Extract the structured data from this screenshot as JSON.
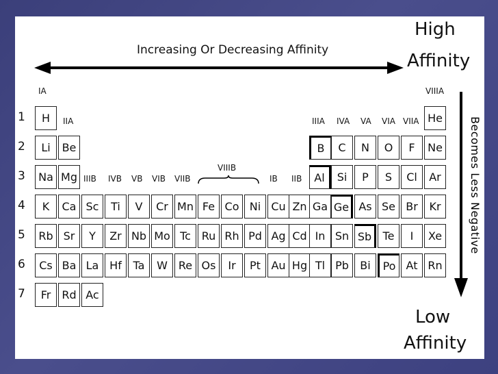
{
  "slide": {
    "arrow_label": "Increasing Or Decreasing Affinity",
    "high_label_1": "High",
    "high_label_2": "Affinity",
    "low_label_1": "Low",
    "low_label_2": "Affinity",
    "vertical_label": "Becomes Less Negative"
  },
  "groups": {
    "g1": "IA",
    "g2": "IIA",
    "g3": "IIIB",
    "g4": "IVB",
    "g5": "VB",
    "g6": "VIB",
    "g7": "VIIB",
    "g8": "VIIIB",
    "g11": "IB",
    "g12": "IIB",
    "g13": "IIIA",
    "g14": "IVA",
    "g15": "VA",
    "g16": "VIA",
    "g17": "VIIA",
    "g18": "VIIIA"
  },
  "periods": [
    "1",
    "2",
    "3",
    "4",
    "5",
    "6",
    "7"
  ],
  "elements": {
    "H": "H",
    "He": "He",
    "Li": "Li",
    "Be": "Be",
    "B": "B",
    "C": "C",
    "N": "N",
    "O": "O",
    "F": "F",
    "Ne": "Ne",
    "Na": "Na",
    "Mg": "Mg",
    "Al": "Al",
    "Si": "Si",
    "P": "P",
    "S": "S",
    "Cl": "Cl",
    "Ar": "Ar",
    "K": "K",
    "Ca": "Ca",
    "Sc": "Sc",
    "Ti": "Ti",
    "V": "V",
    "Cr": "Cr",
    "Mn": "Mn",
    "Fe": "Fe",
    "Co": "Co",
    "Ni": "Ni",
    "Cu": "Cu",
    "Zn": "Zn",
    "Ga": "Ga",
    "Ge": "Ge",
    "As": "As",
    "Se": "Se",
    "Br": "Br",
    "Kr": "Kr",
    "Rb": "Rb",
    "Sr": "Sr",
    "Y": "Y",
    "Zr": "Zr",
    "Nb": "Nb",
    "Mo": "Mo",
    "Tc": "Tc",
    "Ru": "Ru",
    "Rh": "Rh",
    "Pd": "Pd",
    "Ag": "Ag",
    "Cd": "Cd",
    "In": "In",
    "Sn": "Sn",
    "Sb": "Sb",
    "Te": "Te",
    "I": "I",
    "Xe": "Xe",
    "Cs": "Cs",
    "Ba": "Ba",
    "La": "La",
    "Hf": "Hf",
    "Ta": "Ta",
    "W": "W",
    "Re": "Re",
    "Os": "Os",
    "Ir": "Ir",
    "Pt": "Pt",
    "Au": "Au",
    "Hg": "Hg",
    "Tl": "Tl",
    "Pb": "Pb",
    "Bi": "Bi",
    "Po": "Po",
    "At": "At",
    "Rn": "Rn",
    "Fr": "Fr",
    "Rd": "Rd",
    "Ac": "Ac"
  }
}
